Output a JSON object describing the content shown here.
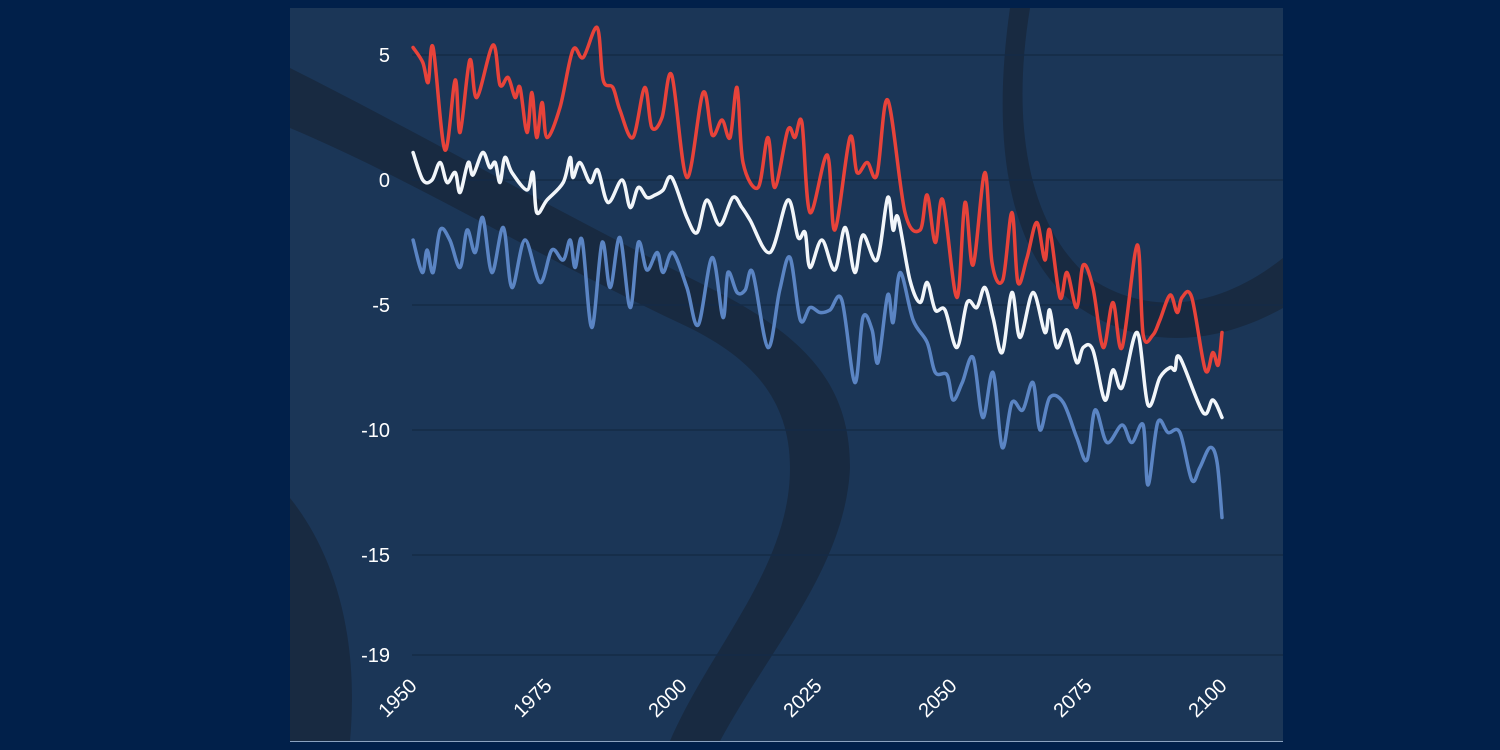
{
  "chart_data": {
    "type": "line",
    "title": "",
    "xlabel": "",
    "ylabel": "",
    "xlim": [
      1950,
      2100
    ],
    "ylim": [
      -19,
      6.5
    ],
    "grid": "horizontal",
    "legend": "none",
    "x_ticks": [
      "1950",
      "1975",
      "2000",
      "2025",
      "2050",
      "2075",
      "2100"
    ],
    "y_ticks": [
      "5",
      "0",
      "-5",
      "-10",
      "-15",
      "-19"
    ],
    "x_tick_values": [
      1950,
      1975,
      2000,
      2025,
      2050,
      2075,
      2100
    ],
    "y_tick_values": [
      5,
      0,
      -5,
      -10,
      -15,
      -19
    ],
    "series": [
      {
        "color": "#e8433a",
        "x": [
          1950.2,
          1952,
          1953,
          1953.9,
          1956.1,
          1958,
          1958.9,
          1960.7,
          1962,
          1965,
          1966.3,
          1967.8,
          1969.1,
          1970,
          1971.3,
          1972.2,
          1973.1,
          1974.1,
          1975,
          1977.4,
          1979.8,
          1981.7,
          1984.3,
          1985.4,
          1987.2,
          1988.5,
          1990.9,
          1993.1,
          1994.4,
          1996.3,
          1998.1,
          2000.9,
          2003.9,
          2005.6,
          2007.4,
          2008.9,
          2010.2,
          2011.3,
          2014.1,
          2015.9,
          2017.2,
          2019.6,
          2020.9,
          2022.2,
          2023.7,
          2026.9,
          2028.3,
          2031.1,
          2032.4,
          2034.3,
          2036.1,
          2038.1,
          2041.3,
          2044.1,
          2045.4,
          2046.9,
          2048.3,
          2050.9,
          2052.4,
          2053.9,
          2056.1,
          2057.4,
          2059.4,
          2061.1,
          2062.2,
          2063.9,
          2065.7,
          2067.2,
          2068.1,
          2070,
          2071.3,
          2073.1,
          2074.3,
          2076.1,
          2078,
          2079.8,
          2081.5,
          2084.3,
          2085.4,
          2087.2,
          2088.5,
          2090.4,
          2091.7,
          2092.6,
          2094.4,
          2096.9,
          2098.3,
          2099.3,
          2100
        ],
        "y": [
          5.3,
          4.7,
          3.9,
          5.3,
          1.2,
          4.0,
          1.9,
          4.8,
          3.3,
          5.4,
          3.8,
          4.1,
          3.3,
          3.7,
          1.9,
          3.5,
          1.7,
          3.1,
          1.7,
          2.9,
          5.2,
          4.9,
          6.1,
          4.0,
          3.7,
          2.8,
          1.7,
          3.7,
          2.1,
          2.5,
          4.2,
          0.1,
          3.5,
          1.8,
          2.4,
          1.7,
          3.7,
          0.7,
          -0.3,
          1.7,
          -0.3,
          2.0,
          1.7,
          2.3,
          -1.3,
          1.0,
          -2.0,
          1.7,
          0.3,
          0.7,
          0.2,
          3.2,
          -1.3,
          -2.0,
          -0.6,
          -2.5,
          -0.8,
          -4.7,
          -0.9,
          -3.4,
          0.3,
          -3.3,
          -4.0,
          -1.3,
          -4.1,
          -3.1,
          -1.7,
          -3.2,
          -2.0,
          -4.7,
          -3.7,
          -5.1,
          -3.4,
          -4.3,
          -6.7,
          -4.9,
          -6.7,
          -2.6,
          -6.2,
          -6.2,
          -5.6,
          -4.6,
          -5.3,
          -4.7,
          -4.7,
          -7.6,
          -6.9,
          -7.4,
          -6.1
        ]
      },
      {
        "color": "#f2f6fa",
        "x": [
          1950.2,
          1952,
          1953.7,
          1955.2,
          1956.5,
          1958,
          1958.9,
          1960.4,
          1961.3,
          1963.1,
          1964.4,
          1965.4,
          1966.3,
          1967.2,
          1968.5,
          1971.3,
          1972.4,
          1973.1,
          1975,
          1978,
          1979.3,
          1979.8,
          1981.1,
          1983,
          1984.4,
          1986.3,
          1988.9,
          1990.4,
          1991.9,
          1993.5,
          1995,
          1996.5,
          1998.1,
          2000.9,
          2002.8,
          2004.6,
          2007,
          2009.4,
          2011.1,
          2012.6,
          2016.3,
          2019.6,
          2021.5,
          2022.8,
          2023.7,
          2025.9,
          2028.3,
          2030.2,
          2032,
          2033.5,
          2036.1,
          2038.1,
          2039.1,
          2040,
          2042.2,
          2044.1,
          2045.4,
          2046.9,
          2048.7,
          2050.9,
          2052.8,
          2054.6,
          2056.1,
          2057.6,
          2059.3,
          2061.1,
          2062.6,
          2065,
          2067.2,
          2068.1,
          2069.4,
          2071.3,
          2073.1,
          2074.3,
          2076.1,
          2078.3,
          2079.8,
          2081.5,
          2084.3,
          2086.3,
          2088.5,
          2090.4,
          2091.3,
          2092.2,
          2096.5,
          2098.3,
          2100
        ],
        "y": [
          1.1,
          0,
          0,
          0.7,
          -0.1,
          0.3,
          -0.5,
          0.7,
          0.2,
          1.1,
          0.5,
          0.7,
          -0.1,
          0.9,
          0.3,
          -0.4,
          0.3,
          -1.3,
          -0.8,
          -0.1,
          0.9,
          0.1,
          0.7,
          -0.1,
          0.4,
          -0.9,
          0,
          -1.1,
          -0.3,
          -0.7,
          -0.6,
          -0.4,
          0.1,
          -1.5,
          -2.1,
          -0.8,
          -1.8,
          -0.7,
          -1.1,
          -1.6,
          -2.9,
          -0.8,
          -2.3,
          -2.1,
          -3.5,
          -2.4,
          -3.6,
          -1.9,
          -3.7,
          -2.2,
          -3.2,
          -0.7,
          -2.0,
          -1.5,
          -4.0,
          -4.9,
          -4.1,
          -5.2,
          -5.2,
          -6.7,
          -4.9,
          -5.1,
          -4.3,
          -5.5,
          -6.9,
          -4.5,
          -6.3,
          -4.5,
          -6.1,
          -5.2,
          -6.7,
          -6.0,
          -7.3,
          -6.7,
          -6.8,
          -8.8,
          -7.6,
          -8.3,
          -6.1,
          -9.0,
          -7.9,
          -7.5,
          -7.6,
          -7.1,
          -9.3,
          -8.8,
          -9.5
        ]
      },
      {
        "color": "#5b85c4",
        "x": [
          1950.2,
          1951.9,
          1952.8,
          1953.9,
          1955.2,
          1957,
          1958.9,
          1960.2,
          1961.7,
          1963.1,
          1964.8,
          1966.9,
          1968.5,
          1970.9,
          1973.7,
          1975.9,
          1978,
          1979.3,
          1980.2,
          1981.5,
          1983.3,
          1985.2,
          1986.7,
          1988.5,
          1990.4,
          1991.9,
          1993.5,
          1995.4,
          1996.5,
          1998.3,
          2000.9,
          2003,
          2005.6,
          2007.6,
          2008.5,
          2010.2,
          2011.7,
          2013.1,
          2015.9,
          2018.1,
          2020,
          2021.9,
          2023.7,
          2025.6,
          2027.4,
          2029.6,
          2032,
          2033.5,
          2035.2,
          2036.3,
          2038.1,
          2039.1,
          2040.4,
          2042.8,
          2045.4,
          2046.9,
          2049.1,
          2050.2,
          2051.9,
          2053.9,
          2055.7,
          2057.6,
          2059.3,
          2061.1,
          2063.1,
          2065,
          2066.3,
          2068.1,
          2070.6,
          2073.1,
          2075,
          2076.5,
          2078.7,
          2081.5,
          2083.3,
          2085.4,
          2086.3,
          2088.1,
          2090,
          2092.2,
          2094.4,
          2095.9,
          2097.8,
          2099.1,
          2100
        ],
        "y": [
          -2.4,
          -3.7,
          -2.8,
          -3.7,
          -2.0,
          -2.4,
          -3.5,
          -2.0,
          -2.9,
          -1.5,
          -3.7,
          -1.9,
          -4.3,
          -2.4,
          -4.1,
          -2.8,
          -3.2,
          -2.4,
          -3.5,
          -2.4,
          -5.9,
          -2.5,
          -4.3,
          -2.3,
          -5.1,
          -2.5,
          -3.6,
          -2.9,
          -3.7,
          -2.9,
          -4.3,
          -5.8,
          -3.1,
          -5.5,
          -3.7,
          -4.5,
          -4.4,
          -3.7,
          -6.7,
          -4.4,
          -3.1,
          -5.6,
          -5.1,
          -5.3,
          -5.2,
          -4.8,
          -8.1,
          -5.5,
          -6.0,
          -7.3,
          -4.6,
          -5.7,
          -3.7,
          -5.6,
          -6.5,
          -7.7,
          -7.8,
          -8.8,
          -8.1,
          -7.1,
          -9.5,
          -7.7,
          -10.7,
          -8.9,
          -9.2,
          -8.1,
          -10.0,
          -8.7,
          -8.9,
          -10.3,
          -11.2,
          -9.2,
          -10.5,
          -9.8,
          -10.5,
          -9.8,
          -12.2,
          -9.7,
          -10.1,
          -10.1,
          -12.0,
          -11.5,
          -10.7,
          -11.3,
          -13.5
        ]
      }
    ]
  }
}
